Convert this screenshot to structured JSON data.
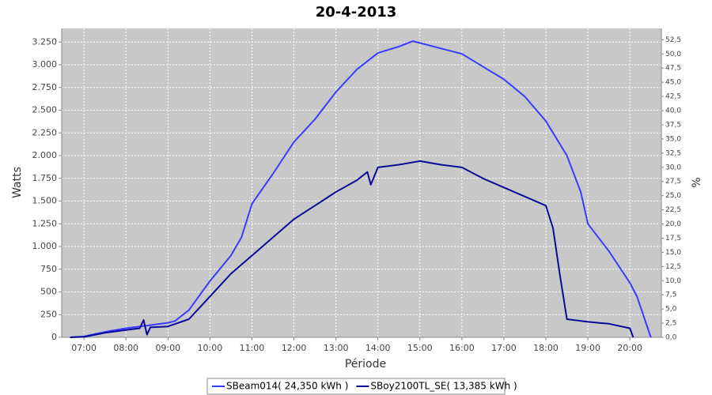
{
  "chart_data": {
    "type": "line",
    "title": "20-4-2013",
    "xlabel": "Période",
    "ylabel": "Watts",
    "y2label": "%",
    "xlim": [
      6.47,
      20.75
    ],
    "xticks": [
      {
        "value": 7,
        "label": "07:00"
      },
      {
        "value": 8,
        "label": "08:00"
      },
      {
        "value": 9,
        "label": "09:00"
      },
      {
        "value": 10,
        "label": "10:00"
      },
      {
        "value": 11,
        "label": "11:00"
      },
      {
        "value": 12,
        "label": "12:00"
      },
      {
        "value": 13,
        "label": "13:00"
      },
      {
        "value": 14,
        "label": "14:00"
      },
      {
        "value": 15,
        "label": "15:00"
      },
      {
        "value": 16,
        "label": "16:00"
      },
      {
        "value": 17,
        "label": "17:00"
      },
      {
        "value": 18,
        "label": "18:00"
      },
      {
        "value": 19,
        "label": "19:00"
      },
      {
        "value": 20,
        "label": "20:00"
      }
    ],
    "ylim": [
      0,
      3400
    ],
    "yticks": [
      0,
      250,
      500,
      750,
      {
        "value": 1000,
        "label": "1.000"
      },
      {
        "value": 1250,
        "label": "1.250"
      },
      {
        "value": 1500,
        "label": "1.500"
      },
      {
        "value": 1750,
        "label": "1.750"
      },
      {
        "value": 2000,
        "label": "2.000"
      },
      {
        "value": 2250,
        "label": "2.250"
      },
      {
        "value": 2500,
        "label": "2.500"
      },
      {
        "value": 2750,
        "label": "2.750"
      },
      {
        "value": 3000,
        "label": "3.000"
      },
      {
        "value": 3250,
        "label": "3.250"
      }
    ],
    "y2lim": [
      0,
      54.5
    ],
    "y2ticks": [
      {
        "value": 0,
        "label": "0,0"
      },
      {
        "value": 2.5,
        "label": "2,5"
      },
      {
        "value": 5,
        "label": "5,0"
      },
      {
        "value": 7.5,
        "label": "7,5"
      },
      {
        "value": 10,
        "label": "10,0"
      },
      {
        "value": 12.5,
        "label": "12,5"
      },
      {
        "value": 15,
        "label": "15,0"
      },
      {
        "value": 17.5,
        "label": "17,5"
      },
      {
        "value": 20,
        "label": "20,0"
      },
      {
        "value": 22.5,
        "label": "22,5"
      },
      {
        "value": 25,
        "label": "25,0"
      },
      {
        "value": 27.5,
        "label": "27,5"
      },
      {
        "value": 30,
        "label": "30,0"
      },
      {
        "value": 32.5,
        "label": "32,5"
      },
      {
        "value": 35,
        "label": "35,0"
      },
      {
        "value": 37.5,
        "label": "37,5"
      },
      {
        "value": 40,
        "label": "40,0"
      },
      {
        "value": 42.5,
        "label": "42,5"
      },
      {
        "value": 45,
        "label": "45,0"
      },
      {
        "value": 47.5,
        "label": "47,5"
      },
      {
        "value": 50,
        "label": "50,0"
      },
      {
        "value": 52.5,
        "label": "52,5"
      }
    ],
    "grid": true,
    "legend": "bottom",
    "series": [
      {
        "name": "SBeam014( 24,350 kWh )",
        "color": "#3b3bff",
        "x": [
          6.67,
          7,
          7.5,
          8,
          8.5,
          9,
          9.17,
          9.5,
          10,
          10.5,
          10.75,
          11,
          11.5,
          12,
          12.5,
          13,
          13.5,
          14,
          14.5,
          14.83,
          15,
          15.5,
          16,
          16.5,
          17,
          17.5,
          18,
          18.5,
          18.83,
          19,
          19.5,
          20,
          20.17,
          20.5
        ],
        "values": [
          0,
          10,
          60,
          100,
          130,
          160,
          180,
          300,
          620,
          900,
          1100,
          1470,
          1800,
          2150,
          2400,
          2700,
          2950,
          3130,
          3200,
          3260,
          3240,
          3180,
          3120,
          2980,
          2840,
          2650,
          2380,
          2000,
          1600,
          1250,
          950,
          600,
          450,
          0
        ]
      },
      {
        "name": "SBoy2100TL_SE( 13,385 kWh )",
        "color": "#0a0a99",
        "x": [
          6.67,
          7,
          7.5,
          8,
          8.33,
          8.42,
          8.5,
          8.58,
          9,
          9.5,
          10,
          10.5,
          11,
          11.5,
          12,
          12.5,
          13,
          13.5,
          13.75,
          13.83,
          14,
          14.5,
          15,
          15.5,
          16,
          16.5,
          17,
          17.5,
          18,
          18.17,
          18.33,
          18.5,
          19,
          19.5,
          20,
          20.08
        ],
        "values": [
          0,
          5,
          50,
          80,
          100,
          190,
          30,
          110,
          120,
          200,
          450,
          700,
          900,
          1100,
          1300,
          1450,
          1600,
          1730,
          1820,
          1680,
          1870,
          1900,
          1940,
          1900,
          1870,
          1750,
          1650,
          1550,
          1450,
          1200,
          700,
          200,
          170,
          150,
          100,
          0
        ]
      }
    ]
  }
}
